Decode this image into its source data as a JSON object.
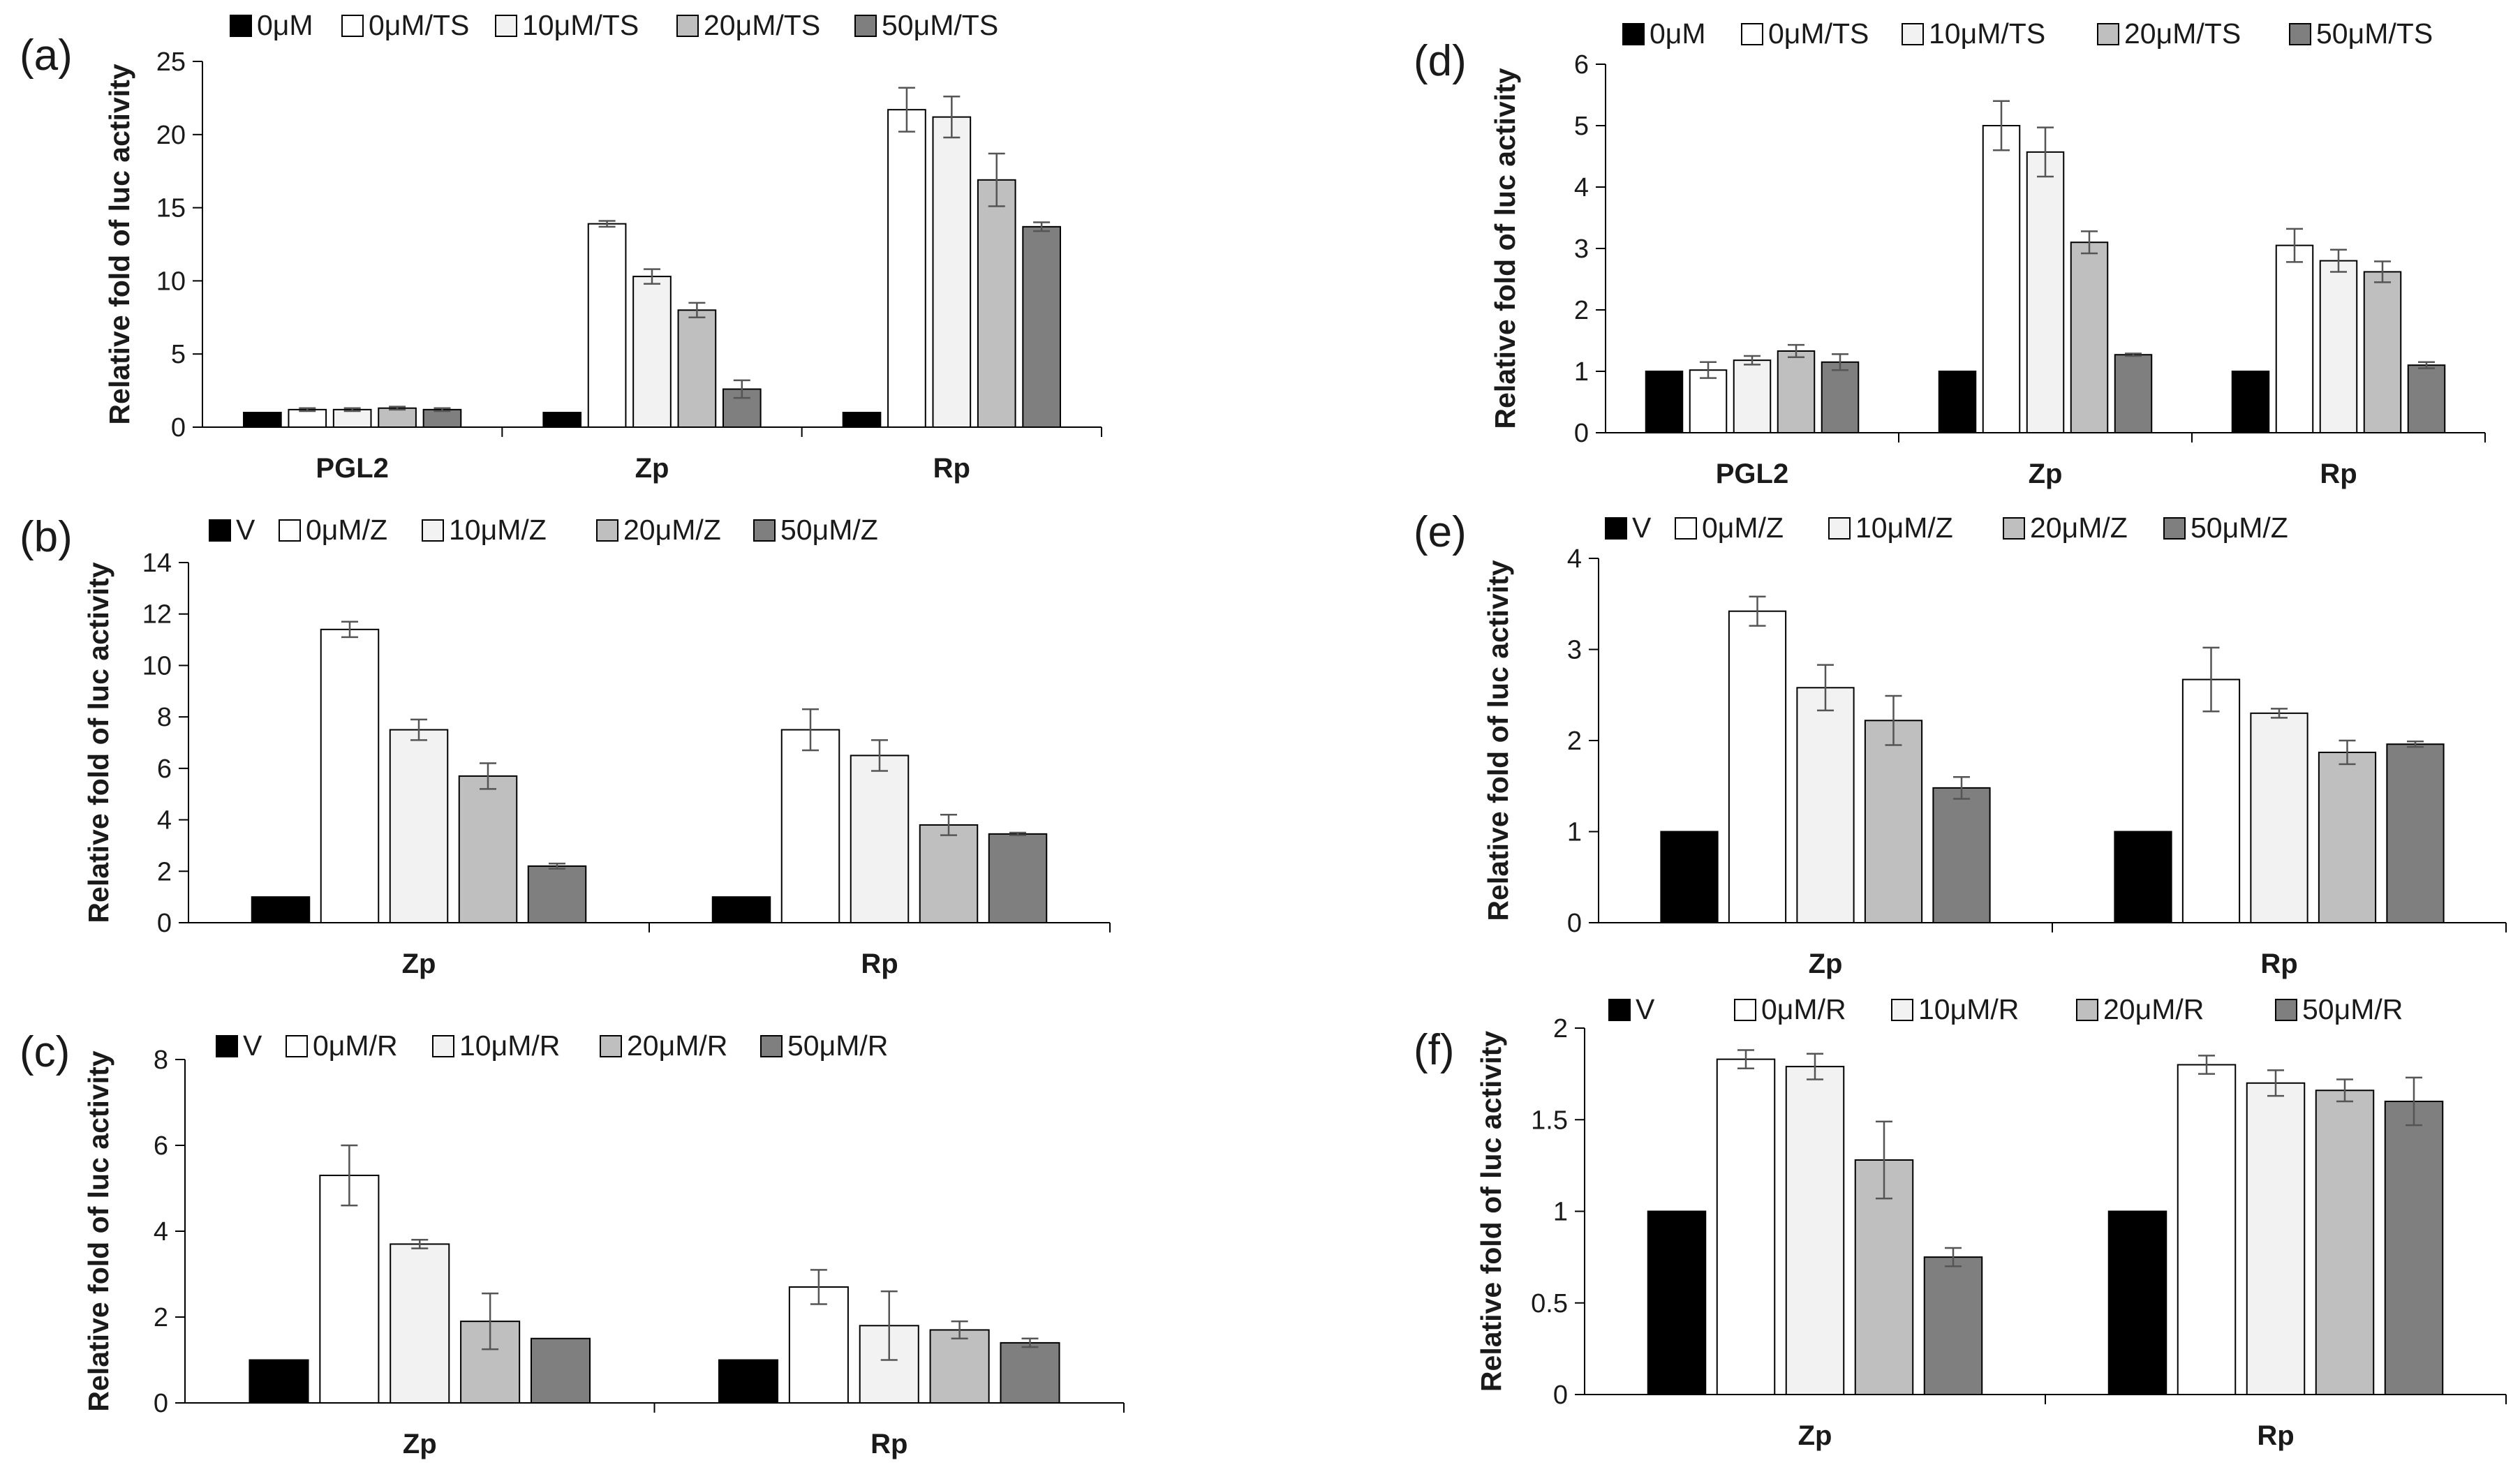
{
  "chart_data": [
    {
      "panel": "(a)",
      "type": "bar",
      "categories": [
        "PGL2",
        "Zp",
        "Rp"
      ],
      "ylabel": "Relative fold of luc activity",
      "ylim": [
        0,
        25
      ],
      "yticks": [
        0,
        5,
        10,
        15,
        20,
        25
      ],
      "legend_position": "top",
      "series": [
        {
          "name": "0μM",
          "color": "#000000",
          "values": [
            1.0,
            1.0,
            1.0
          ],
          "errors": [
            0,
            0,
            0
          ]
        },
        {
          "name": "0μM/TS",
          "color": "#ffffff",
          "values": [
            1.2,
            13.9,
            21.7
          ],
          "errors": [
            0.1,
            0.2,
            1.5
          ]
        },
        {
          "name": "10μM/TS",
          "color": "#f2f2f2",
          "values": [
            1.2,
            10.3,
            21.2
          ],
          "errors": [
            0.1,
            0.5,
            1.4
          ]
        },
        {
          "name": "20μM/TS",
          "color": "#bfbfbf",
          "values": [
            1.3,
            8.0,
            16.9
          ],
          "errors": [
            0.1,
            0.5,
            1.8
          ]
        },
        {
          "name": "50μM/TS",
          "color": "#7f7f7f",
          "values": [
            1.2,
            2.6,
            13.7
          ],
          "errors": [
            0.1,
            0.6,
            0.3
          ]
        }
      ]
    },
    {
      "panel": "(b)",
      "type": "bar",
      "categories": [
        "Zp",
        "Rp"
      ],
      "ylabel": "Relative fold of luc activity",
      "ylim": [
        0,
        14
      ],
      "yticks": [
        0,
        2,
        4,
        6,
        8,
        10,
        12,
        14
      ],
      "legend_position": "top",
      "series": [
        {
          "name": "V",
          "color": "#000000",
          "values": [
            1.0,
            1.0
          ],
          "errors": [
            0,
            0
          ]
        },
        {
          "name": "0μM/Z",
          "color": "#ffffff",
          "values": [
            11.4,
            7.5
          ],
          "errors": [
            0.3,
            0.8
          ]
        },
        {
          "name": "10μM/Z",
          "color": "#f2f2f2",
          "values": [
            7.5,
            6.5
          ],
          "errors": [
            0.4,
            0.6
          ]
        },
        {
          "name": "20μM/Z",
          "color": "#bfbfbf",
          "values": [
            5.7,
            3.8
          ],
          "errors": [
            0.5,
            0.4
          ]
        },
        {
          "name": "50μM/Z",
          "color": "#7f7f7f",
          "values": [
            2.2,
            3.45
          ],
          "errors": [
            0.1,
            0.05
          ]
        }
      ]
    },
    {
      "panel": "(c)",
      "type": "bar",
      "categories": [
        "Zp",
        "Rp"
      ],
      "ylabel": "Relative fold of luc activity",
      "ylim": [
        0,
        8
      ],
      "yticks": [
        0,
        2,
        4,
        6,
        8
      ],
      "legend_position": "top",
      "series": [
        {
          "name": "V",
          "color": "#000000",
          "values": [
            1.0,
            1.0
          ],
          "errors": [
            0,
            0
          ]
        },
        {
          "name": "0μM/R",
          "color": "#ffffff",
          "values": [
            5.3,
            2.7
          ],
          "errors": [
            0.7,
            0.4
          ]
        },
        {
          "name": "10μM/R",
          "color": "#f2f2f2",
          "values": [
            3.7,
            1.8
          ],
          "errors": [
            0.1,
            0.8
          ]
        },
        {
          "name": "20μM/R",
          "color": "#bfbfbf",
          "values": [
            1.9,
            1.7
          ],
          "errors": [
            0.65,
            0.2
          ]
        },
        {
          "name": "50μM/R",
          "color": "#7f7f7f",
          "values": [
            1.5,
            1.4
          ],
          "errors": [
            0,
            0.1
          ]
        }
      ]
    },
    {
      "panel": "(d)",
      "type": "bar",
      "categories": [
        "PGL2",
        "Zp",
        "Rp"
      ],
      "ylabel": "Relative fold of luc activity",
      "ylim": [
        0,
        6
      ],
      "yticks": [
        0,
        1,
        2,
        3,
        4,
        5,
        6
      ],
      "legend_position": "top",
      "series": [
        {
          "name": "0μM",
          "color": "#000000",
          "values": [
            1.0,
            1.0,
            1.0
          ],
          "errors": [
            0,
            0,
            0
          ]
        },
        {
          "name": "0μM/TS",
          "color": "#ffffff",
          "values": [
            1.02,
            5.0,
            3.05
          ],
          "errors": [
            0.13,
            0.4,
            0.27
          ]
        },
        {
          "name": "10μM/TS",
          "color": "#f2f2f2",
          "values": [
            1.18,
            4.57,
            2.8
          ],
          "errors": [
            0.07,
            0.4,
            0.18
          ]
        },
        {
          "name": "20μM/TS",
          "color": "#bfbfbf",
          "values": [
            1.33,
            3.1,
            2.62
          ],
          "errors": [
            0.1,
            0.18,
            0.17
          ]
        },
        {
          "name": "50μM/TS",
          "color": "#7f7f7f",
          "values": [
            1.15,
            1.27,
            1.1
          ],
          "errors": [
            0.13,
            0.02,
            0.05
          ]
        }
      ]
    },
    {
      "panel": "(e)",
      "type": "bar",
      "categories": [
        "Zp",
        "Rp"
      ],
      "ylabel": "Relative fold of luc activity",
      "ylim": [
        0,
        4
      ],
      "yticks": [
        0,
        1,
        2,
        3,
        4
      ],
      "legend_position": "top",
      "series": [
        {
          "name": "V",
          "color": "#000000",
          "values": [
            1.0,
            1.0
          ],
          "errors": [
            0,
            0
          ]
        },
        {
          "name": "0μM/Z",
          "color": "#ffffff",
          "values": [
            3.42,
            2.67
          ],
          "errors": [
            0.16,
            0.35
          ]
        },
        {
          "name": "10μM/Z",
          "color": "#f2f2f2",
          "values": [
            2.58,
            2.3
          ],
          "errors": [
            0.25,
            0.05
          ]
        },
        {
          "name": "20μM/Z",
          "color": "#bfbfbf",
          "values": [
            2.22,
            1.87
          ],
          "errors": [
            0.27,
            0.13
          ]
        },
        {
          "name": "50μM/Z",
          "color": "#7f7f7f",
          "values": [
            1.48,
            1.96
          ],
          "errors": [
            0.12,
            0.03
          ]
        }
      ]
    },
    {
      "panel": "(f)",
      "type": "bar",
      "categories": [
        "Zp",
        "Rp"
      ],
      "ylabel": "Relative fold of luc activity",
      "ylim": [
        0,
        2
      ],
      "yticks": [
        0,
        0.5,
        1,
        1.5,
        2
      ],
      "legend_position": "top",
      "series": [
        {
          "name": "V",
          "color": "#000000",
          "values": [
            1.0,
            1.0
          ],
          "errors": [
            0,
            0
          ]
        },
        {
          "name": "0μM/R",
          "color": "#ffffff",
          "values": [
            1.83,
            1.8
          ],
          "errors": [
            0.05,
            0.05
          ]
        },
        {
          "name": "10μM/R",
          "color": "#f2f2f2",
          "values": [
            1.79,
            1.7
          ],
          "errors": [
            0.07,
            0.07
          ]
        },
        {
          "name": "20μM/R",
          "color": "#bfbfbf",
          "values": [
            1.28,
            1.66
          ],
          "errors": [
            0.21,
            0.06
          ]
        },
        {
          "name": "50μM/R",
          "color": "#7f7f7f",
          "values": [
            0.75,
            1.6
          ],
          "errors": [
            0.05,
            0.13
          ]
        }
      ]
    }
  ]
}
